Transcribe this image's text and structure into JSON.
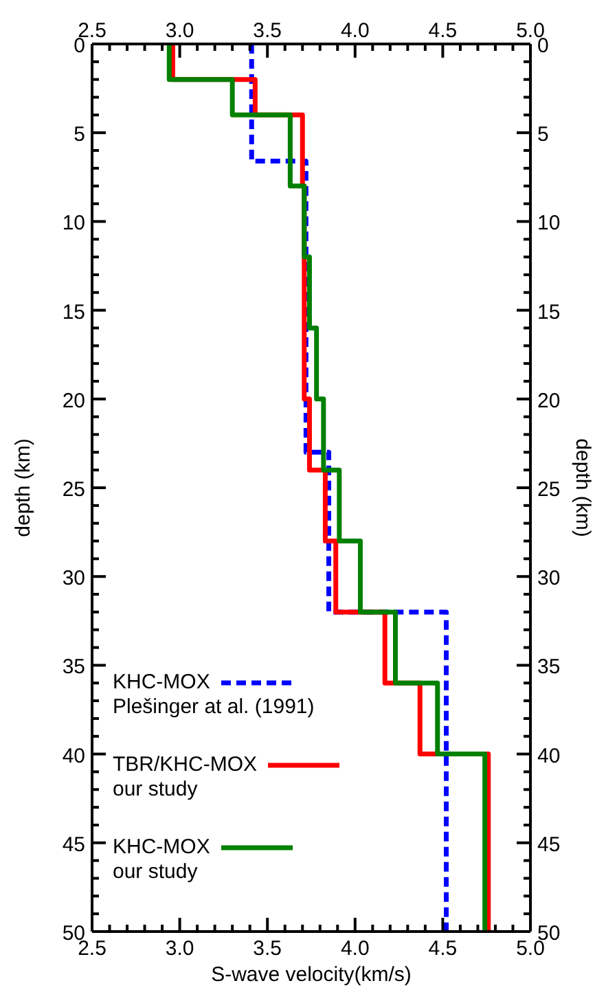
{
  "chart_data": {
    "type": "step",
    "orientation": "horizontal",
    "xlabel": "S-wave velocity(km/s)",
    "ylabel": "depth (km)",
    "y2label": "depth (km)",
    "xlim": [
      2.5,
      5
    ],
    "x2lim": [
      2.5,
      5
    ],
    "xticks": [
      2.5,
      {
        "value": 2.6,
        "label": null
      },
      {
        "value": 2.7,
        "label": null
      },
      {
        "value": 2.8,
        "label": null
      },
      {
        "value": 2.9,
        "label": null
      },
      {
        "value": 3,
        "label": "3.0"
      },
      {
        "value": 3.1,
        "label": null
      },
      {
        "value": 3.2,
        "label": null
      },
      {
        "value": 3.3,
        "label": null
      },
      {
        "value": 3.4,
        "label": null
      },
      3.5,
      {
        "value": 3.6,
        "label": null
      },
      {
        "value": 3.7,
        "label": null
      },
      {
        "value": 3.8,
        "label": null
      },
      {
        "value": 3.9,
        "label": null
      },
      {
        "value": 4,
        "label": "4.0"
      },
      {
        "value": 4.1,
        "label": null
      },
      {
        "value": 4.2,
        "label": null
      },
      {
        "value": 4.3,
        "label": null
      },
      {
        "value": 4.4,
        "label": null
      },
      4.5,
      {
        "value": 4.6,
        "label": null
      },
      {
        "value": 4.7,
        "label": null
      },
      {
        "value": 4.8,
        "label": null
      },
      {
        "value": 4.9,
        "label": null
      },
      {
        "value": 5,
        "label": "5.0"
      }
    ],
    "x2ticks": [
      2.5,
      {
        "value": 2.6,
        "label": null
      },
      {
        "value": 2.7,
        "label": null
      },
      {
        "value": 2.8,
        "label": null
      },
      {
        "value": 2.9,
        "label": null
      },
      {
        "value": 3,
        "label": "3.0"
      },
      {
        "value": 3.1,
        "label": null
      },
      {
        "value": 3.2,
        "label": null
      },
      {
        "value": 3.3,
        "label": null
      },
      {
        "value": 3.4,
        "label": null
      },
      3.5,
      {
        "value": 3.6,
        "label": null
      },
      {
        "value": 3.7,
        "label": null
      },
      {
        "value": 3.8,
        "label": null
      },
      {
        "value": 3.9,
        "label": null
      },
      {
        "value": 4,
        "label": "4.0"
      },
      {
        "value": 4.1,
        "label": null
      },
      {
        "value": 4.2,
        "label": null
      },
      {
        "value": 4.3,
        "label": null
      },
      {
        "value": 4.4,
        "label": null
      },
      4.5,
      {
        "value": 4.6,
        "label": null
      },
      {
        "value": 4.7,
        "label": null
      },
      {
        "value": 4.8,
        "label": null
      },
      {
        "value": 4.9,
        "label": null
      },
      {
        "value": 5,
        "label": "5.0"
      }
    ],
    "ylim": [
      50,
      0
    ],
    "y2lim": [
      50,
      0
    ],
    "yticks": [
      0,
      {
        "value": 1,
        "label": null
      },
      {
        "value": 2,
        "label": null
      },
      {
        "value": 3,
        "label": null
      },
      {
        "value": 4,
        "label": null
      },
      5,
      {
        "value": 6,
        "label": null
      },
      {
        "value": 7,
        "label": null
      },
      {
        "value": 8,
        "label": null
      },
      {
        "value": 9,
        "label": null
      },
      10,
      {
        "value": 11,
        "label": null
      },
      {
        "value": 12,
        "label": null
      },
      {
        "value": 13,
        "label": null
      },
      {
        "value": 14,
        "label": null
      },
      15,
      {
        "value": 16,
        "label": null
      },
      {
        "value": 17,
        "label": null
      },
      {
        "value": 18,
        "label": null
      },
      {
        "value": 19,
        "label": null
      },
      20,
      {
        "value": 21,
        "label": null
      },
      {
        "value": 22,
        "label": null
      },
      {
        "value": 23,
        "label": null
      },
      {
        "value": 24,
        "label": null
      },
      25,
      {
        "value": 26,
        "label": null
      },
      {
        "value": 27,
        "label": null
      },
      {
        "value": 28,
        "label": null
      },
      {
        "value": 29,
        "label": null
      },
      30,
      {
        "value": 31,
        "label": null
      },
      {
        "value": 32,
        "label": null
      },
      {
        "value": 33,
        "label": null
      },
      {
        "value": 34,
        "label": null
      },
      35,
      {
        "value": 36,
        "label": null
      },
      {
        "value": 37,
        "label": null
      },
      {
        "value": 38,
        "label": null
      },
      {
        "value": 39,
        "label": null
      },
      40,
      {
        "value": 41,
        "label": null
      },
      {
        "value": 42,
        "label": null
      },
      {
        "value": 43,
        "label": null
      },
      {
        "value": 44,
        "label": null
      },
      45,
      {
        "value": 46,
        "label": null
      },
      {
        "value": 47,
        "label": null
      },
      {
        "value": 48,
        "label": null
      },
      {
        "value": 49,
        "label": null
      },
      50
    ],
    "y2ticks": [
      0,
      {
        "value": 1,
        "label": null
      },
      {
        "value": 2,
        "label": null
      },
      {
        "value": 3,
        "label": null
      },
      {
        "value": 4,
        "label": null
      },
      5,
      {
        "value": 6,
        "label": null
      },
      {
        "value": 7,
        "label": null
      },
      {
        "value": 8,
        "label": null
      },
      {
        "value": 9,
        "label": null
      },
      10,
      {
        "value": 11,
        "label": null
      },
      {
        "value": 12,
        "label": null
      },
      {
        "value": 13,
        "label": null
      },
      {
        "value": 14,
        "label": null
      },
      15,
      {
        "value": 16,
        "label": null
      },
      {
        "value": 17,
        "label": null
      },
      {
        "value": 18,
        "label": null
      },
      {
        "value": 19,
        "label": null
      },
      20,
      {
        "value": 21,
        "label": null
      },
      {
        "value": 22,
        "label": null
      },
      {
        "value": 23,
        "label": null
      },
      {
        "value": 24,
        "label": null
      },
      25,
      {
        "value": 26,
        "label": null
      },
      {
        "value": 27,
        "label": null
      },
      {
        "value": 28,
        "label": null
      },
      {
        "value": 29,
        "label": null
      },
      30,
      {
        "value": 31,
        "label": null
      },
      {
        "value": 32,
        "label": null
      },
      {
        "value": 33,
        "label": null
      },
      {
        "value": 34,
        "label": null
      },
      35,
      {
        "value": 36,
        "label": null
      },
      {
        "value": 37,
        "label": null
      },
      {
        "value": 38,
        "label": null
      },
      {
        "value": 39,
        "label": null
      },
      40,
      {
        "value": 41,
        "label": null
      },
      {
        "value": 42,
        "label": null
      },
      {
        "value": 43,
        "label": null
      },
      {
        "value": 44,
        "label": null
      },
      45,
      {
        "value": 46,
        "label": null
      },
      {
        "value": 47,
        "label": null
      },
      {
        "value": 48,
        "label": null
      },
      {
        "value": 49,
        "label": null
      },
      50
    ],
    "legend": "bottom left",
    "marker": "none",
    "series": [
      {
        "name": "KHC-MOX\nPlešinger at al. (1991)",
        "color": "#0000ff",
        "line_style": "dashed",
        "x": [
          0,
          6.6,
          23,
          32,
          50
        ],
        "values": [
          3.41,
          3.72,
          3.85,
          4.52,
          4.52
        ]
      },
      {
        "name": "TBR/KHC-MOX\nour study",
        "color": "#ff0000",
        "line_style": "solid",
        "x": [
          0,
          2,
          4,
          8,
          20,
          24,
          28,
          32,
          36,
          40,
          50
        ],
        "values": [
          2.96,
          3.43,
          3.7,
          3.71,
          3.74,
          3.83,
          3.89,
          4.17,
          4.37,
          4.76,
          4.76
        ]
      },
      {
        "name": "KHC-MOX\nour study",
        "color": "#008000",
        "line_style": "solid",
        "x": [
          0,
          2,
          4,
          8,
          12,
          16,
          20,
          24,
          28,
          32,
          36,
          40,
          50
        ],
        "values": [
          2.94,
          3.3,
          3.63,
          3.71,
          3.74,
          3.78,
          3.82,
          3.91,
          4.03,
          4.23,
          4.47,
          4.74,
          4.74
        ]
      }
    ]
  }
}
